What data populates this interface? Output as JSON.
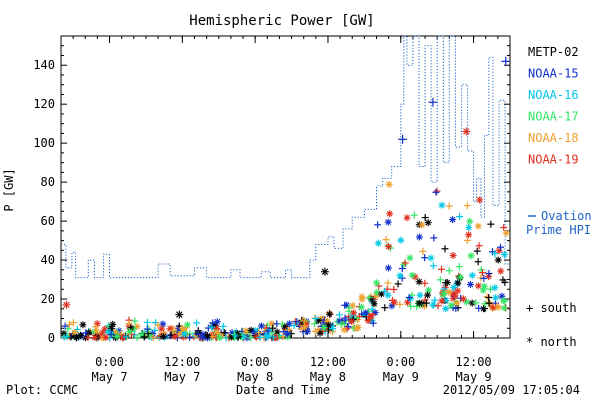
{
  "chart_data": {
    "type": "scatter",
    "title": "Hemispheric Power [GW]",
    "xlabel": "Date and Time",
    "ylabel": "P [GW]",
    "ylim": [
      0,
      155
    ],
    "yticks": [
      0,
      20,
      40,
      60,
      80,
      100,
      120,
      140
    ],
    "xlim_hours": [
      0,
      48
    ],
    "x_ticks": [
      {
        "x": 4.0,
        "line1": "0:00",
        "line2": "May 7"
      },
      {
        "x": 16.0,
        "line1": "12:00",
        "line2": "May 7"
      },
      {
        "x": 28.0,
        "line1": "0:00",
        "line2": "May 8"
      },
      {
        "x": 40.0,
        "line1": "12:00",
        "line2": "May 8"
      },
      {
        "x": 52.0,
        "line1": "0:00",
        "line2": "May 9"
      },
      {
        "x": 64.0,
        "line1": "12:00",
        "line2": "May 9"
      }
    ],
    "x_axis_note": "x values in hours since 20:00 May 6",
    "footer_left": "Plot: CCMC",
    "footer_right": "2012/05/09 17:05:04",
    "legend_placement": "right",
    "series": [
      {
        "name": "METP-02",
        "color": "#000000"
      },
      {
        "name": "NOAA-15",
        "color": "#1030c8"
      },
      {
        "name": "NOAA-16",
        "color": "#00c8e6"
      },
      {
        "name": "NOAA-17",
        "color": "#32e664"
      },
      {
        "name": "NOAA-18",
        "color": "#f0a030"
      },
      {
        "name": "NOAA-19",
        "color": "#e03020"
      }
    ],
    "ovation": {
      "label_line1": "Ovation",
      "label_line2": "Prime HPI",
      "color": "#1e64c8",
      "points": [
        [
          -4,
          48
        ],
        [
          -3.2,
          48
        ],
        [
          -3.2,
          36
        ],
        [
          -2.2,
          36
        ],
        [
          -2.2,
          44
        ],
        [
          -1.6,
          44
        ],
        [
          -1.6,
          31
        ],
        [
          0.5,
          31
        ],
        [
          0.5,
          40
        ],
        [
          1.5,
          40
        ],
        [
          1.5,
          31
        ],
        [
          3,
          31
        ],
        [
          3,
          43
        ],
        [
          4,
          43
        ],
        [
          4,
          31
        ],
        [
          12,
          31
        ],
        [
          12,
          38
        ],
        [
          14,
          38
        ],
        [
          14,
          32
        ],
        [
          18,
          32
        ],
        [
          18,
          36
        ],
        [
          20,
          36
        ],
        [
          20,
          31
        ],
        [
          24,
          31
        ],
        [
          24,
          35
        ],
        [
          25.5,
          35
        ],
        [
          25.5,
          31
        ],
        [
          29,
          31
        ],
        [
          29,
          34
        ],
        [
          30.5,
          34
        ],
        [
          30.5,
          31
        ],
        [
          33,
          31
        ],
        [
          33,
          35
        ],
        [
          34,
          35
        ],
        [
          34,
          31
        ],
        [
          37,
          31
        ],
        [
          37,
          40
        ],
        [
          38,
          40
        ],
        [
          38,
          48
        ],
        [
          40,
          48
        ],
        [
          40,
          52
        ],
        [
          41,
          52
        ],
        [
          41,
          46
        ],
        [
          42.5,
          46
        ],
        [
          42.5,
          56
        ],
        [
          44,
          56
        ],
        [
          44,
          62
        ],
        [
          46,
          62
        ],
        [
          46,
          66
        ],
        [
          48,
          66
        ],
        [
          48,
          78
        ],
        [
          49,
          78
        ],
        [
          49,
          82
        ],
        [
          50.5,
          82
        ],
        [
          50.5,
          88
        ],
        [
          52,
          88
        ],
        [
          52,
          120
        ],
        [
          52.5,
          120
        ],
        [
          52.5,
          155
        ],
        [
          53,
          155
        ],
        [
          53,
          140
        ],
        [
          54,
          140
        ],
        [
          54,
          155
        ],
        [
          55,
          155
        ],
        [
          55,
          88
        ],
        [
          56,
          88
        ],
        [
          56,
          150
        ],
        [
          57,
          150
        ],
        [
          57,
          80
        ],
        [
          58,
          80
        ],
        [
          58,
          155
        ],
        [
          59,
          155
        ],
        [
          59,
          90
        ],
        [
          60,
          90
        ],
        [
          60,
          155
        ],
        [
          61,
          155
        ],
        [
          61,
          98
        ],
        [
          62,
          98
        ],
        [
          62,
          130
        ],
        [
          63,
          130
        ],
        [
          63,
          96
        ],
        [
          64,
          96
        ],
        [
          64,
          70
        ],
        [
          64.5,
          70
        ],
        [
          64.5,
          82
        ],
        [
          65.2,
          82
        ],
        [
          65.2,
          62
        ],
        [
          65.8,
          62
        ],
        [
          65.8,
          104
        ],
        [
          66.5,
          104
        ],
        [
          66.5,
          144
        ],
        [
          67.2,
          144
        ],
        [
          67.2,
          68
        ],
        [
          68.2,
          68
        ],
        [
          68.2,
          122
        ],
        [
          69.2,
          122
        ],
        [
          69.2,
          38
        ],
        [
          70,
          38
        ]
      ]
    },
    "south_marker_label": "+ south",
    "north_marker_label": "* north"
  }
}
